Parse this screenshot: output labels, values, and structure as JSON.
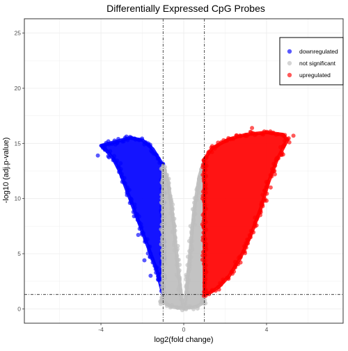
{
  "chart_data": {
    "type": "scatter",
    "title": "Differentially Expressed CpG Probes",
    "xlabel": "log2(fold change)",
    "ylabel": "-log10 (adj.p-value)",
    "xlim": [
      -7.7,
      7.7
    ],
    "ylim": [
      -1.3,
      26.3
    ],
    "x_ticks": [
      -4,
      0,
      4
    ],
    "y_ticks": [
      0,
      5,
      10,
      15,
      20,
      25
    ],
    "grid": true,
    "legend_position": "top-right",
    "thresholds": {
      "log2fc": [
        -1,
        1
      ],
      "neg_log10_padj": 1.3
    },
    "series": [
      {
        "name": "downregulated",
        "color": "#0000FF",
        "envelope": [
          [
            -1.0,
            1.3
          ],
          [
            -1.1,
            2.0
          ],
          [
            -1.3,
            3.5
          ],
          [
            -1.6,
            5.0
          ],
          [
            -1.9,
            6.5
          ],
          [
            -2.2,
            8.0
          ],
          [
            -2.5,
            9.5
          ],
          [
            -2.8,
            11.0
          ],
          [
            -3.1,
            12.5
          ],
          [
            -3.4,
            13.6
          ],
          [
            -3.7,
            14.3
          ],
          [
            -4.0,
            14.8
          ],
          [
            -2.6,
            15.5
          ],
          [
            -2.0,
            15.3
          ],
          [
            -1.5,
            14.5
          ],
          [
            -1.0,
            13.0
          ]
        ],
        "outliers": [
          [
            -4.15,
            13.9
          ],
          [
            -3.9,
            14.6
          ],
          [
            -3.6,
            14.9
          ],
          [
            -3.3,
            14.9
          ],
          [
            -2.9,
            15.2
          ],
          [
            -3.05,
            13.2
          ],
          [
            -2.4,
            8.4
          ],
          [
            -2.6,
            9.6
          ],
          [
            -2.2,
            6.7
          ],
          [
            -1.9,
            4.4
          ],
          [
            -1.6,
            3.0
          ]
        ]
      },
      {
        "name": "not significant",
        "color": "#BEBEBE",
        "envelope": [
          [
            -1.0,
            1.3
          ],
          [
            -1.0,
            13.0
          ],
          [
            -0.75,
            11.5
          ],
          [
            -0.5,
            8.0
          ],
          [
            -0.3,
            4.0
          ],
          [
            -0.1,
            1.0
          ],
          [
            0.0,
            0.0
          ],
          [
            0.1,
            1.0
          ],
          [
            0.3,
            5.0
          ],
          [
            0.5,
            9.0
          ],
          [
            0.75,
            12.0
          ],
          [
            1.0,
            13.5
          ],
          [
            1.0,
            1.3
          ],
          [
            0.9,
            0.5
          ],
          [
            0.6,
            0.2
          ],
          [
            0.3,
            0.1
          ],
          [
            -0.3,
            0.1
          ],
          [
            -0.6,
            0.2
          ],
          [
            -1.1,
            0.7
          ]
        ],
        "outliers": [
          [
            -1.1,
            0.6
          ],
          [
            1.05,
            0.5
          ],
          [
            -0.05,
            0.1
          ],
          [
            0.05,
            0.15
          ]
        ]
      },
      {
        "name": "upregulated",
        "color": "#FF0000",
        "envelope": [
          [
            1.0,
            1.3
          ],
          [
            1.0,
            13.6
          ],
          [
            1.4,
            14.6
          ],
          [
            2.2,
            15.4
          ],
          [
            3.0,
            15.8
          ],
          [
            4.0,
            16.0
          ],
          [
            4.8,
            15.8
          ],
          [
            5.0,
            15.3
          ],
          [
            4.5,
            13.5
          ],
          [
            4.1,
            11.5
          ],
          [
            3.7,
            9.0
          ],
          [
            3.2,
            6.5
          ],
          [
            2.7,
            4.5
          ],
          [
            2.2,
            3.0
          ],
          [
            1.7,
            2.0
          ],
          [
            1.3,
            1.5
          ]
        ],
        "outliers": [
          [
            5.3,
            15.7
          ],
          [
            5.1,
            15.1
          ],
          [
            4.8,
            14.0
          ],
          [
            4.4,
            12.2
          ],
          [
            4.2,
            11.0
          ],
          [
            4.0,
            9.8
          ],
          [
            3.7,
            8.5
          ],
          [
            3.3,
            16.4
          ]
        ]
      }
    ]
  }
}
